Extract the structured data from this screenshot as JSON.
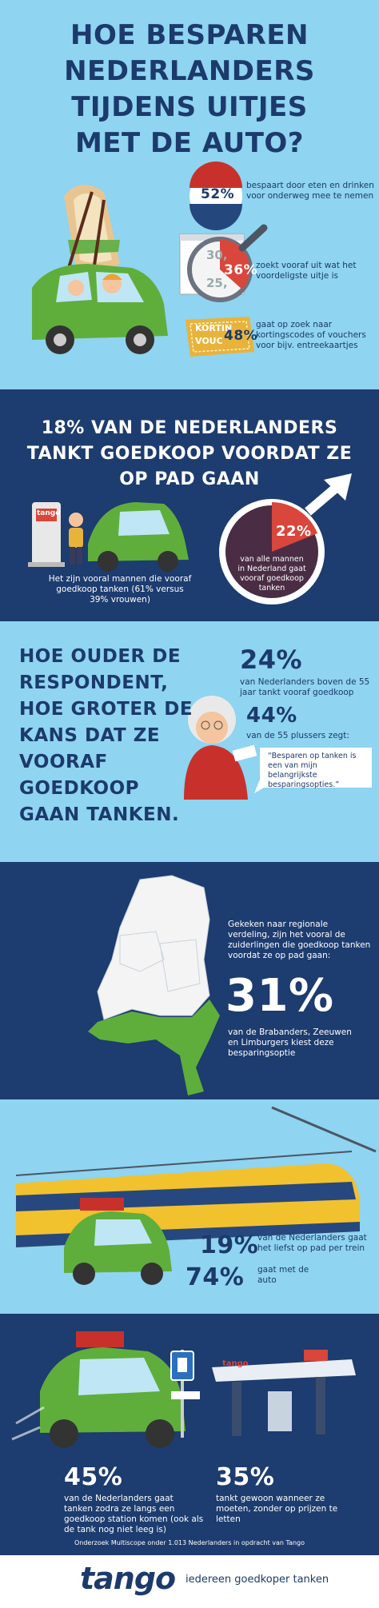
{
  "header": {
    "title_lines": [
      "HOE BESPAREN",
      "NEDERLANDERS",
      "TIJDENS UITJES",
      "MET DE AUTO?"
    ]
  },
  "savings": {
    "items": [
      {
        "percent": "52%",
        "text": "bespaart door eten en drinken voor onderweg mee te nemen"
      },
      {
        "percent": "36%",
        "text": "zoekt vooraf uit wat het voordeligste uitje is"
      },
      {
        "percent": "48%",
        "text": "gaat op zoek naar kortingscodes of vouchers voor bijv. entreekaartjes"
      }
    ],
    "price_tags": [
      "30,",
      "25,"
    ],
    "voucher_text": [
      "KORTIN",
      "VOUC"
    ]
  },
  "fuel": {
    "heading_lines": [
      "18% VAN DE NEDERLANDERS",
      "TANKT GOEDKOOP VOORDAT ZE",
      "OP PAD GAAN"
    ],
    "pump_brand": "tango",
    "men_note": "Het zijn vooral mannen die vooraf goedkoop tanken (61% versus 39% vrouwen)",
    "men_percent": "22%",
    "men_text": "van alle mannen in Nederland gaat vooraf goedkoop tanken"
  },
  "age": {
    "heading_lines": [
      "HOE OUDER DE",
      "RESPONDENT,",
      "HOE GROTER DE",
      "KANS DAT ZE",
      "VOORAF",
      "GOEDKOOP",
      "GAAN TANKEN."
    ],
    "stat1_percent": "24%",
    "stat1_text": "van Nederlanders boven de 55 jaar tankt vooraf goedkoop",
    "stat2_percent": "44%",
    "stat2_text": "van de 55 plussers zegt:",
    "quote": "“Besparen op tanken is een van mijn belangrijkste besparingsopties.”"
  },
  "region": {
    "intro": "Gekeken naar regionale verdeling, zijn het vooral de zuiderlingen die goedkoop tanken voordat ze op pad gaan:",
    "percent": "31%",
    "text": "van de Brabanders, Zeeuwen en Limburgers kiest deze besparingsoptie"
  },
  "transport": {
    "train_percent": "19%",
    "train_text": "van de Nederlanders gaat het liefst op pad per trein",
    "car_percent": "74%",
    "car_text": "gaat met de auto"
  },
  "habits": {
    "stat1_percent": "45%",
    "stat1_text": "van de Nederlanders gaat tanken zodra ze langs een goedkoop station komen (ook als de tank nog niet leeg is)",
    "stat2_percent": "35%",
    "stat2_text": "tankt gewoon wanneer ze moeten, zonder op prijzen te letten",
    "station_brand": "tango",
    "source": "Onderzoek Multiscope onder 1.013 Nederlanders in opdracht van Tango"
  },
  "footer": {
    "logo": "tango",
    "tagline": "iedereen goedkoper tanken"
  }
}
